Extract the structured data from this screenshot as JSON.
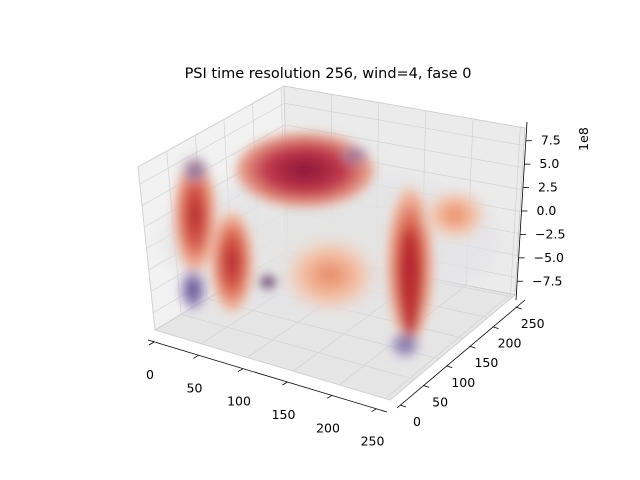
{
  "chart_data": {
    "type": "surface3d",
    "title": "PSI time resolution 256, wind=4, fase 0",
    "xlabel": "",
    "ylabel": "",
    "zlabel": "",
    "x_ticks": [
      "0",
      "50",
      "100",
      "150",
      "200",
      "250"
    ],
    "y_ticks": [
      "0",
      "50",
      "100",
      "150",
      "200",
      "250"
    ],
    "z_ticks": [
      "7.5",
      "5.0",
      "2.5",
      "0.0",
      "−2.5",
      "−5.0",
      "−7.5"
    ],
    "z_offset_text": "1e8",
    "xlim": [
      0,
      255
    ],
    "ylim": [
      0,
      255
    ],
    "zlim": [
      -950000000.0,
      950000000.0
    ],
    "colormap": "twilight_shifted",
    "grid": true
  }
}
